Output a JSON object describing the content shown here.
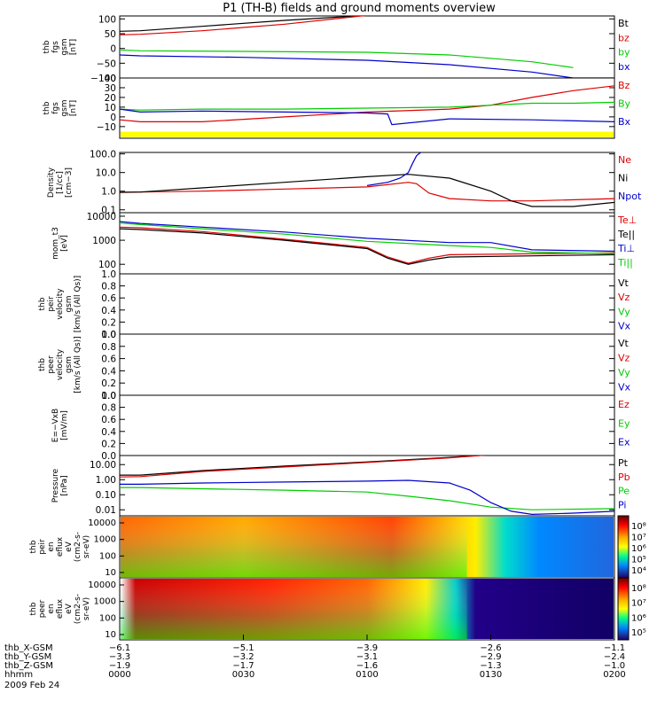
{
  "title": "P1 (TH-B) fields and ground moments overview",
  "chart_data": [
    {
      "type": "line",
      "ylabel": [
        "thb",
        "fgs",
        "gsm",
        "[nT]"
      ],
      "yticks": [
        "100",
        "50",
        "0",
        "−50",
        "−100"
      ],
      "yrange": [
        -100,
        110
      ],
      "ticksv": [
        100,
        50,
        0,
        -50,
        -100
      ],
      "series": [
        {
          "name": "Bt",
          "color": "#000000",
          "x": [
            0,
            5,
            20,
            40,
            60
          ],
          "y": [
            58,
            60,
            75,
            95,
            112
          ]
        },
        {
          "name": "bz",
          "color": "#dd0000",
          "x": [
            0,
            5,
            20,
            40,
            60
          ],
          "y": [
            46,
            48,
            60,
            82,
            112
          ]
        },
        {
          "name": "by",
          "color": "#00cc00",
          "x": [
            0,
            5,
            30,
            60,
            80,
            100,
            110
          ],
          "y": [
            -5,
            -8,
            -10,
            -13,
            -22,
            -45,
            -65
          ]
        },
        {
          "name": "bx",
          "color": "#0000cc",
          "x": [
            0,
            5,
            30,
            60,
            80,
            100,
            110,
            120
          ],
          "y": [
            -22,
            -25,
            -30,
            -40,
            -55,
            -80,
            -100,
            -102
          ]
        }
      ]
    },
    {
      "type": "line",
      "ylabel": [
        "thb",
        "fgs",
        "gsm",
        "[nT]"
      ],
      "yticks": [
        "40",
        "30",
        "20",
        "10",
        "0",
        "−10"
      ],
      "yrange": [
        -22,
        40
      ],
      "ticksv": [
        40,
        30,
        20,
        10,
        0,
        -10
      ],
      "bar": {
        "color": "#ffff00",
        "y": -18
      },
      "series": [
        {
          "name": "Bz",
          "color": "#dd0000",
          "x": [
            0,
            5,
            20,
            40,
            60,
            80,
            90,
            100,
            110,
            120
          ],
          "y": [
            -3,
            -5,
            -5,
            0,
            5,
            8,
            12,
            20,
            27,
            32
          ]
        },
        {
          "name": "By",
          "color": "#00cc00",
          "x": [
            0,
            5,
            20,
            40,
            60,
            80,
            90,
            100,
            110,
            120
          ],
          "y": [
            8,
            7,
            8,
            8,
            9,
            10,
            12,
            14,
            14,
            15
          ]
        },
        {
          "name": "Bx",
          "color": "#0000cc",
          "x": [
            0,
            5,
            20,
            40,
            60,
            65,
            66,
            80,
            100,
            120
          ],
          "y": [
            8,
            5,
            6,
            5,
            4,
            3,
            -8,
            -2,
            -3,
            -5
          ]
        }
      ]
    },
    {
      "type": "line",
      "log": true,
      "ylabel": [
        "Density",
        "[1/cc]",
        "[cm−3]"
      ],
      "yticks": [
        "100.0",
        "10.0",
        "1.0",
        "0.1"
      ],
      "yrange": [
        0.07,
        120
      ],
      "ticksv": [
        100,
        10,
        1,
        0.1
      ],
      "series": [
        {
          "name": "Ne",
          "color": "#dd0000",
          "x": [
            0,
            5,
            20,
            40,
            60,
            70,
            72,
            75,
            80,
            90,
            100,
            120
          ],
          "y": [
            0.9,
            0.9,
            1,
            1.3,
            1.7,
            3,
            2.5,
            0.8,
            0.4,
            0.3,
            0.3,
            0.4
          ]
        },
        {
          "name": "Ni",
          "color": "#000000",
          "x": [
            0,
            5,
            20,
            40,
            60,
            70,
            80,
            90,
            95,
            100,
            110,
            120
          ],
          "y": [
            0.85,
            0.9,
            1.5,
            3,
            6,
            8,
            5,
            1,
            0.3,
            0.15,
            0.15,
            0.25
          ]
        },
        {
          "name": "Npot",
          "color": "#0000cc",
          "x": [
            60,
            65,
            68,
            70,
            71,
            72,
            73
          ],
          "y": [
            2,
            3,
            5,
            10,
            30,
            80,
            120
          ]
        }
      ]
    },
    {
      "type": "line",
      "log": true,
      "ylabel": [
        "mom_t3",
        "[eV]"
      ],
      "yticks": [
        "10000",
        "1000",
        "100"
      ],
      "yrange": [
        40,
        14000
      ],
      "ticksv": [
        10000,
        1000,
        100
      ],
      "series": [
        {
          "name": "Te⊥",
          "color": "#dd0000",
          "x": [
            0,
            5,
            20,
            40,
            60,
            65,
            70,
            75,
            80,
            120
          ],
          "y": [
            3500,
            3300,
            2300,
            1100,
            500,
            200,
            110,
            180,
            250,
            300
          ]
        },
        {
          "name": "Te||",
          "color": "#000000",
          "x": [
            0,
            5,
            20,
            40,
            60,
            65,
            70,
            75,
            80,
            120
          ],
          "y": [
            3000,
            2800,
            2000,
            1000,
            450,
            180,
            100,
            150,
            200,
            250
          ]
        },
        {
          "name": "Ti⊥",
          "color": "#0000cc",
          "x": [
            0,
            5,
            20,
            40,
            60,
            80,
            90,
            100,
            120
          ],
          "y": [
            6000,
            5000,
            3500,
            2200,
            1200,
            800,
            800,
            400,
            350
          ]
        },
        {
          "name": "Ti||",
          "color": "#00cc00",
          "x": [
            0,
            5,
            20,
            40,
            60,
            80,
            90,
            100,
            120
          ],
          "y": [
            5200,
            4500,
            3000,
            1800,
            900,
            600,
            500,
            320,
            280
          ]
        }
      ]
    },
    {
      "type": "line",
      "ylabel": [
        "thb",
        "peir",
        "velocity",
        "gsm",
        "[km/s (All Qs)]"
      ],
      "yticks": [
        "1.0",
        "0.8",
        "0.6",
        "0.4",
        "0.2",
        "0.0"
      ],
      "yrange": [
        0,
        1
      ],
      "ticksv": [
        1,
        0.8,
        0.6,
        0.4,
        0.2,
        0
      ],
      "legend": [
        {
          "name": "Vt",
          "color": "#000000"
        },
        {
          "name": "Vz",
          "color": "#dd0000"
        },
        {
          "name": "Vy",
          "color": "#00cc00"
        },
        {
          "name": "Vx",
          "color": "#0000cc"
        }
      ],
      "series": []
    },
    {
      "type": "line",
      "ylabel": [
        "thb",
        "peer",
        "velocity",
        "gsm",
        "[km/s (All Qs)]"
      ],
      "yticks": [
        "1.0",
        "0.8",
        "0.6",
        "0.4",
        "0.2",
        "0.0"
      ],
      "yrange": [
        0,
        1
      ],
      "ticksv": [
        1,
        0.8,
        0.6,
        0.4,
        0.2,
        0
      ],
      "legend": [
        {
          "name": "Vt",
          "color": "#000000"
        },
        {
          "name": "Vz",
          "color": "#dd0000"
        },
        {
          "name": "Vy",
          "color": "#00cc00"
        },
        {
          "name": "Vx",
          "color": "#0000cc"
        }
      ],
      "series": []
    },
    {
      "type": "line",
      "ylabel": [
        "E=−VxB",
        "[mV/m]"
      ],
      "yticks": [
        "1.0",
        "0.8",
        "0.6",
        "0.4",
        "0.2",
        "0.0"
      ],
      "yrange": [
        0,
        1
      ],
      "ticksv": [
        1,
        0.8,
        0.6,
        0.4,
        0.2,
        0
      ],
      "legend": [
        {
          "name": "Ez",
          "color": "#dd0000"
        },
        {
          "name": "Ey",
          "color": "#00cc00"
        },
        {
          "name": "Ex",
          "color": "#0000cc"
        }
      ],
      "series": []
    },
    {
      "type": "line",
      "log": true,
      "ylabel": [
        "Pressure",
        "[nPa]"
      ],
      "yticks": [
        "10.00",
        "1.00",
        "0.10",
        "0.01"
      ],
      "yrange": [
        0.004,
        40
      ],
      "ticksv": [
        10,
        1,
        0.1,
        0.01
      ],
      "series": [
        {
          "name": "Pt",
          "color": "#000000",
          "x": [
            0,
            5,
            20,
            40,
            60,
            80,
            90
          ],
          "y": [
            2,
            2,
            4,
            8,
            15,
            30,
            45
          ]
        },
        {
          "name": "Pb",
          "color": "#dd0000",
          "x": [
            0,
            5,
            20,
            40,
            60,
            80,
            90
          ],
          "y": [
            1.5,
            1.6,
            3.5,
            7,
            14,
            28,
            45
          ]
        },
        {
          "name": "Pe",
          "color": "#00cc00",
          "x": [
            0,
            5,
            20,
            40,
            60,
            70,
            80,
            90,
            100,
            120
          ],
          "y": [
            0.3,
            0.3,
            0.25,
            0.2,
            0.15,
            0.08,
            0.04,
            0.015,
            0.01,
            0.012
          ]
        },
        {
          "name": "Pi",
          "color": "#0000cc",
          "x": [
            0,
            5,
            20,
            40,
            60,
            70,
            80,
            85,
            90,
            95,
            100,
            110,
            120
          ],
          "y": [
            0.5,
            0.5,
            0.6,
            0.7,
            0.8,
            0.9,
            0.6,
            0.2,
            0.03,
            0.008,
            0.005,
            0.006,
            0.008
          ]
        }
      ]
    },
    {
      "type": "heatmap",
      "ylabel": [
        "thb",
        "peir",
        "en",
        "eflux",
        "eV",
        "(cm2-s-",
        "sr-eV)"
      ],
      "yticks": [
        "10000",
        "1000",
        "100",
        "10"
      ],
      "colorbar": {
        "labels": [
          "10⁸",
          "10⁷",
          "10⁶",
          "10⁵",
          "10⁴"
        ]
      }
    },
    {
      "type": "heatmap",
      "ylabel": [
        "thb",
        "peer",
        "en",
        "eflux",
        "eV",
        "(cm2-s-",
        "sr-eV)"
      ],
      "yticks": [
        "10000",
        "1000",
        "100",
        "10"
      ],
      "colorbar": {
        "labels": [
          "10⁸",
          "10⁷",
          "10⁶",
          "10⁵"
        ]
      }
    }
  ],
  "legends": [
    [
      "Bt",
      "bz",
      "by",
      "bx"
    ],
    [
      "Bz",
      "By",
      "Bx"
    ],
    [
      "Ne",
      "Ni",
      "Npot"
    ],
    [
      "Te⊥",
      "Te||",
      "Ti⊥",
      "Ti||"
    ]
  ],
  "xaxis": {
    "rows": [
      {
        "label": "thb_X-GSM",
        "values": [
          "−6.1",
          "−5.1",
          "−3.9",
          "−2.6",
          "−1.1"
        ]
      },
      {
        "label": "thb_Y-GSM",
        "values": [
          "−3.3",
          "−3.2",
          "−3.1",
          "−2.9",
          "−2.4"
        ]
      },
      {
        "label": "thb_Z-GSM",
        "values": [
          "−1.9",
          "−1.7",
          "−1.6",
          "−1.3",
          "−1.0"
        ]
      },
      {
        "label": "hhmm",
        "values": [
          "0000",
          "0030",
          "0100",
          "0130",
          "0200"
        ]
      }
    ],
    "date": "2009 Feb 24",
    "minutes": [
      0,
      30,
      60,
      90,
      120
    ]
  },
  "colors": {
    "red": "#dd0000",
    "green": "#00cc00",
    "blue": "#0000cc",
    "black": "#000000",
    "yellow": "#ffff00"
  }
}
